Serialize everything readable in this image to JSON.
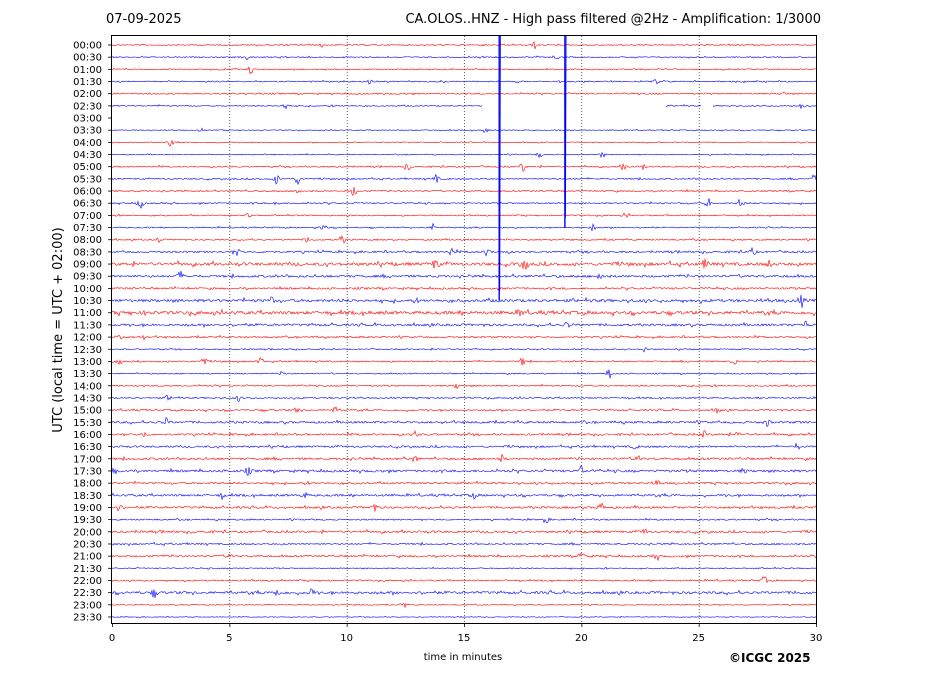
{
  "header": {
    "date": "07-09-2025",
    "title": "CA.OLOS..HNZ - High pass filtered @2Hz - Amplification: 1/3000"
  },
  "footer": {
    "copyright": "©ICGC 2025"
  },
  "colors": {
    "even_trace": "#ff0000",
    "odd_trace": "#0000ff",
    "grid": "#000000"
  },
  "chart_data": {
    "type": "line",
    "title": "CA.OLOS..HNZ - High pass filtered @2Hz - Amplification: 1/3000",
    "xlabel": "time in minutes",
    "ylabel": "UTC (local time = UTC + 02:00)",
    "xlim": [
      0,
      30
    ],
    "x_ticks": [
      "0",
      "5",
      "10",
      "15",
      "20",
      "25",
      "30"
    ],
    "x_tick_values": [
      0,
      5,
      10,
      15,
      20,
      25,
      30
    ],
    "grid": "vertical dotted lines at every 5 minutes",
    "rows": [
      "00:00",
      "00:30",
      "01:00",
      "01:30",
      "02:00",
      "02:30",
      "03:00",
      "03:30",
      "04:00",
      "04:30",
      "05:00",
      "05:30",
      "06:00",
      "06:30",
      "07:00",
      "07:30",
      "08:00",
      "08:30",
      "09:00",
      "09:30",
      "10:00",
      "10:30",
      "11:00",
      "11:30",
      "12:00",
      "12:30",
      "13:00",
      "13:30",
      "14:00",
      "14:30",
      "15:00",
      "15:30",
      "16:00",
      "16:30",
      "17:00",
      "17:30",
      "18:00",
      "18:30",
      "19:00",
      "19:30",
      "20:00",
      "20:30",
      "21:00",
      "21:30",
      "22:00",
      "22:30",
      "23:00",
      "23:30"
    ],
    "row_colors_alternate": [
      "#ff0000",
      "#0000ff"
    ],
    "noise_level": [
      0.5,
      0.5,
      0.5,
      0.5,
      0.6,
      0.5,
      0.3,
      0.4,
      0.4,
      0.4,
      0.6,
      0.6,
      0.6,
      0.6,
      0.5,
      0.5,
      0.6,
      0.8,
      1.3,
      1.0,
      0.8,
      1.2,
      1.4,
      1.0,
      0.7,
      0.5,
      0.6,
      0.5,
      0.6,
      0.6,
      0.7,
      0.9,
      0.8,
      0.8,
      0.9,
      1.0,
      0.8,
      0.9,
      0.9,
      0.6,
      0.9,
      0.7,
      0.8,
      0.5,
      0.6,
      1.1,
      0.4,
      0.3
    ],
    "gaps": [
      {
        "row": "02:30",
        "from": 15.8,
        "to": 23.6
      },
      {
        "row": "02:30",
        "from": 25.1,
        "to": 25.6
      },
      {
        "row": "03:00",
        "from": 0,
        "to": 30
      }
    ],
    "events": [
      {
        "row": "00:00",
        "minute": 9.0,
        "amp": 3
      },
      {
        "row": "00:00",
        "minute": 18.0,
        "amp": 4
      },
      {
        "row": "00:30",
        "minute": 5.8,
        "amp": 3
      },
      {
        "row": "00:30",
        "minute": 18.9,
        "amp": 3
      },
      {
        "row": "01:00",
        "minute": 5.9,
        "amp": 5
      },
      {
        "row": "01:30",
        "minute": 11.0,
        "amp": 3
      },
      {
        "row": "01:30",
        "minute": 23.2,
        "amp": 3
      },
      {
        "row": "02:00",
        "minute": 28.6,
        "amp": 3
      },
      {
        "row": "02:30",
        "minute": 7.4,
        "amp": 4
      },
      {
        "row": "02:30",
        "minute": 29.4,
        "amp": 3
      },
      {
        "row": "03:30",
        "minute": 3.8,
        "amp": 2
      },
      {
        "row": "03:30",
        "minute": 15.9,
        "amp": 3
      },
      {
        "row": "04:00",
        "minute": 2.5,
        "amp": 4
      },
      {
        "row": "04:30",
        "minute": 18.2,
        "amp": 3
      },
      {
        "row": "04:30",
        "minute": 20.9,
        "amp": 3
      },
      {
        "row": "05:00",
        "minute": 12.6,
        "amp": 4
      },
      {
        "row": "05:00",
        "minute": 17.5,
        "amp": 5
      },
      {
        "row": "05:00",
        "minute": 21.8,
        "amp": 4
      },
      {
        "row": "05:00",
        "minute": 22.6,
        "amp": 3
      },
      {
        "row": "05:30",
        "minute": 7.0,
        "amp": 5
      },
      {
        "row": "05:30",
        "minute": 7.9,
        "amp": 5
      },
      {
        "row": "05:30",
        "minute": 13.8,
        "amp": 4
      },
      {
        "row": "05:30",
        "minute": 29.9,
        "amp": 4
      },
      {
        "row": "06:00",
        "minute": 7.9,
        "amp": 3
      },
      {
        "row": "06:00",
        "minute": 10.3,
        "amp": 5
      },
      {
        "row": "06:30",
        "minute": 1.2,
        "amp": 6
      },
      {
        "row": "06:30",
        "minute": 7.0,
        "amp": 3
      },
      {
        "row": "06:30",
        "minute": 25.4,
        "amp": 5
      },
      {
        "row": "06:30",
        "minute": 26.8,
        "amp": 6
      },
      {
        "row": "07:00",
        "minute": 5.8,
        "amp": 3
      },
      {
        "row": "07:00",
        "minute": 21.9,
        "amp": 3
      },
      {
        "row": "07:30",
        "minute": 9.0,
        "amp": 5
      },
      {
        "row": "07:30",
        "minute": 13.7,
        "amp": 4
      },
      {
        "row": "07:30",
        "minute": 20.5,
        "amp": 4
      },
      {
        "row": "08:00",
        "minute": 2.0,
        "amp": 3
      },
      {
        "row": "08:00",
        "minute": 8.3,
        "amp": 3
      },
      {
        "row": "08:00",
        "minute": 9.8,
        "amp": 5
      },
      {
        "row": "08:30",
        "minute": 5.3,
        "amp": 5
      },
      {
        "row": "08:30",
        "minute": 14.5,
        "amp": 7
      },
      {
        "row": "08:30",
        "minute": 16.0,
        "amp": 4
      },
      {
        "row": "08:30",
        "minute": 27.3,
        "amp": 4
      },
      {
        "row": "09:00",
        "minute": 13.8,
        "amp": 7
      },
      {
        "row": "09:00",
        "minute": 17.6,
        "amp": 7
      },
      {
        "row": "09:00",
        "minute": 25.3,
        "amp": 5
      },
      {
        "row": "09:00",
        "minute": 28.0,
        "amp": 3
      },
      {
        "row": "09:30",
        "minute": 2.9,
        "amp": 4
      },
      {
        "row": "09:30",
        "minute": 20.8,
        "amp": 5
      },
      {
        "row": "10:30",
        "minute": 6.8,
        "amp": 3
      },
      {
        "row": "10:30",
        "minute": 29.4,
        "amp": 6
      },
      {
        "row": "11:00",
        "minute": 1.5,
        "amp": 3
      },
      {
        "row": "11:00",
        "minute": 17.4,
        "amp": 3
      },
      {
        "row": "11:30",
        "minute": 19.4,
        "amp": 3
      },
      {
        "row": "11:30",
        "minute": 29.6,
        "amp": 4
      },
      {
        "row": "12:00",
        "minute": 0.3,
        "amp": 4
      },
      {
        "row": "12:00",
        "minute": 1.3,
        "amp": 3
      },
      {
        "row": "12:30",
        "minute": 22.7,
        "amp": 3
      },
      {
        "row": "13:00",
        "minute": 0.3,
        "amp": 3
      },
      {
        "row": "13:00",
        "minute": 3.9,
        "amp": 5
      },
      {
        "row": "13:00",
        "minute": 6.3,
        "amp": 4
      },
      {
        "row": "13:00",
        "minute": 17.5,
        "amp": 4
      },
      {
        "row": "13:00",
        "minute": 26.5,
        "amp": 3
      },
      {
        "row": "13:30",
        "minute": 7.3,
        "amp": 3
      },
      {
        "row": "13:30",
        "minute": 21.2,
        "amp": 5
      },
      {
        "row": "14:00",
        "minute": 14.7,
        "amp": 3
      },
      {
        "row": "14:30",
        "minute": 2.4,
        "amp": 3
      },
      {
        "row": "14:30",
        "minute": 5.4,
        "amp": 3
      },
      {
        "row": "15:00",
        "minute": 7.9,
        "amp": 3
      },
      {
        "row": "15:00",
        "minute": 9.5,
        "amp": 3
      },
      {
        "row": "15:00",
        "minute": 25.8,
        "amp": 3
      },
      {
        "row": "15:30",
        "minute": 2.3,
        "amp": 4
      },
      {
        "row": "15:30",
        "minute": 27.9,
        "amp": 4
      },
      {
        "row": "16:00",
        "minute": 1.4,
        "amp": 3
      },
      {
        "row": "16:00",
        "minute": 12.9,
        "amp": 4
      },
      {
        "row": "16:00",
        "minute": 25.2,
        "amp": 4
      },
      {
        "row": "16:00",
        "minute": 26.7,
        "amp": 3
      },
      {
        "row": "16:30",
        "minute": 22.3,
        "amp": 3
      },
      {
        "row": "16:30",
        "minute": 29.2,
        "amp": 3
      },
      {
        "row": "17:00",
        "minute": 12.9,
        "amp": 4
      },
      {
        "row": "17:00",
        "minute": 16.6,
        "amp": 4
      },
      {
        "row": "17:00",
        "minute": 22.4,
        "amp": 4
      },
      {
        "row": "17:30",
        "minute": 0.1,
        "amp": 3
      },
      {
        "row": "17:30",
        "minute": 5.8,
        "amp": 4
      },
      {
        "row": "17:30",
        "minute": 20.0,
        "amp": 5
      },
      {
        "row": "17:30",
        "minute": 26.9,
        "amp": 3
      },
      {
        "row": "18:00",
        "minute": 23.2,
        "amp": 3
      },
      {
        "row": "18:30",
        "minute": 4.7,
        "amp": 3
      },
      {
        "row": "18:30",
        "minute": 8.2,
        "amp": 3
      },
      {
        "row": "18:30",
        "minute": 15.4,
        "amp": 3
      },
      {
        "row": "19:00",
        "minute": 0.3,
        "amp": 3
      },
      {
        "row": "19:00",
        "minute": 11.2,
        "amp": 4
      },
      {
        "row": "19:00",
        "minute": 20.8,
        "amp": 3
      },
      {
        "row": "19:00",
        "minute": 20.9,
        "amp": 2
      },
      {
        "row": "19:30",
        "minute": 18.5,
        "amp": 3
      },
      {
        "row": "20:00",
        "minute": 22.7,
        "amp": 3
      },
      {
        "row": "21:00",
        "minute": 5.0,
        "amp": 3
      },
      {
        "row": "21:00",
        "minute": 20.0,
        "amp": 5
      },
      {
        "row": "21:00",
        "minute": 23.2,
        "amp": 4
      },
      {
        "row": "22:00",
        "minute": 27.8,
        "amp": 4
      },
      {
        "row": "22:30",
        "minute": 1.8,
        "amp": 4
      },
      {
        "row": "22:30",
        "minute": 7.0,
        "amp": 5
      },
      {
        "row": "22:30",
        "minute": 8.5,
        "amp": 4
      },
      {
        "row": "23:00",
        "minute": 12.4,
        "amp": 4
      }
    ],
    "spikes": [
      {
        "row_from": "00:00",
        "row_to": "10:30",
        "minute": 16.5,
        "color": "#0000ff"
      },
      {
        "row_from": "00:00",
        "row_to": "07:30",
        "minute": 19.3,
        "color": "#0000ff"
      }
    ]
  }
}
